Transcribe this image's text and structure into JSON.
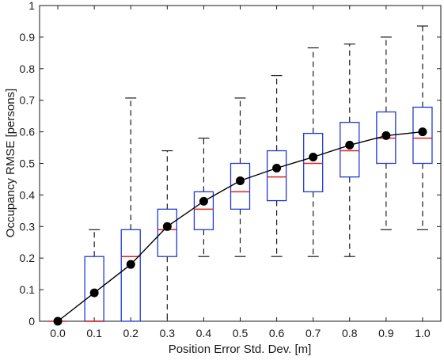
{
  "chart_data": {
    "type": "box",
    "title": "",
    "xlabel": "Position Error Std. Dev. [m]",
    "ylabel": "Occupancy RMSE [persons]",
    "categories": [
      "0.0",
      "0.1",
      "0.2",
      "0.3",
      "0.4",
      "0.5",
      "0.6",
      "0.7",
      "0.8",
      "0.9",
      "1.0"
    ],
    "ylim": [
      0,
      1
    ],
    "yticks": [
      "0",
      "0.1",
      "0.2",
      "0.3",
      "0.4",
      "0.5",
      "0.6",
      "0.7",
      "0.8",
      "0.9",
      "1"
    ],
    "grid": false,
    "legend": "none",
    "boxes": [
      {
        "whisker_low": 0.0,
        "q1": 0.0,
        "median": 0.0,
        "q3": 0.0,
        "whisker_high": 0.0
      },
      {
        "whisker_low": 0.0,
        "q1": 0.0,
        "median": 0.0,
        "q3": 0.205,
        "whisker_high": 0.29
      },
      {
        "whisker_low": 0.0,
        "q1": 0.0,
        "median": 0.205,
        "q3": 0.29,
        "whisker_high": 0.707
      },
      {
        "whisker_low": 0.0,
        "q1": 0.205,
        "median": 0.29,
        "q3": 0.355,
        "whisker_high": 0.54
      },
      {
        "whisker_low": 0.205,
        "q1": 0.29,
        "median": 0.355,
        "q3": 0.41,
        "whisker_high": 0.58
      },
      {
        "whisker_low": 0.205,
        "q1": 0.355,
        "median": 0.41,
        "q3": 0.5,
        "whisker_high": 0.707
      },
      {
        "whisker_low": 0.205,
        "q1": 0.382,
        "median": 0.457,
        "q3": 0.54,
        "whisker_high": 0.778
      },
      {
        "whisker_low": 0.205,
        "q1": 0.41,
        "median": 0.5,
        "q3": 0.595,
        "whisker_high": 0.866
      },
      {
        "whisker_low": 0.205,
        "q1": 0.457,
        "median": 0.54,
        "q3": 0.63,
        "whisker_high": 0.878
      },
      {
        "whisker_low": 0.29,
        "q1": 0.5,
        "median": 0.58,
        "q3": 0.663,
        "whisker_high": 0.9
      },
      {
        "whisker_low": 0.29,
        "q1": 0.5,
        "median": 0.58,
        "q3": 0.678,
        "whisker_high": 0.935
      }
    ],
    "mean_line": {
      "x": [
        0.0,
        0.1,
        0.2,
        0.3,
        0.4,
        0.5,
        0.6,
        0.7,
        0.8,
        0.9,
        1.0
      ],
      "y": [
        0.0,
        0.09,
        0.18,
        0.3,
        0.38,
        0.445,
        0.485,
        0.52,
        0.558,
        0.588,
        0.6
      ]
    },
    "colors": {
      "box": "#1f3ad6",
      "median": "#e0231b",
      "whisker": "#1a1a1a",
      "mean_line": "#000000",
      "mean_marker": "#000000"
    }
  }
}
